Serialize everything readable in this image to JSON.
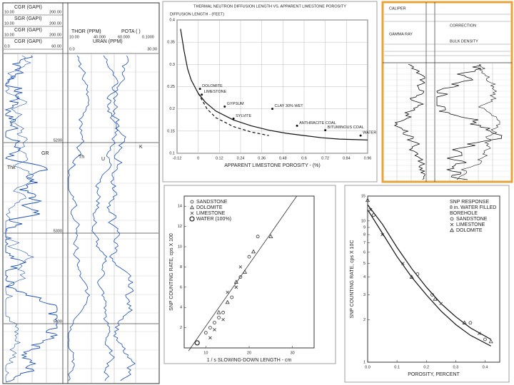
{
  "left_log": {
    "header_left": [
      [
        "CGR (GAPI)",
        "10.00",
        "200.00"
      ],
      [
        "SGR (GAPI)",
        "10.00",
        "200.00"
      ],
      [
        "CGR (GAPI)",
        "10.00",
        "200.00"
      ],
      [
        "CGR (GAPI)",
        "0.0",
        "60.00"
      ]
    ],
    "header_right": {
      "thor": "THOR (PPM)",
      "pota": "POTA (   )",
      "scale": [
        "10.00",
        "40.000",
        "60.000",
        "0.1000"
      ],
      "uran": "URAN (PPM)",
      "uran_scale": [
        "0.0",
        "30.00"
      ]
    },
    "depths": [
      "5200",
      "5300",
      "5400"
    ],
    "curve_labels": [
      "GR",
      "Th",
      "U",
      "K",
      "Thk"
    ]
  },
  "right_log": {
    "headers": [
      "CALIPER",
      "GAMMA RAY",
      "CORRECTION",
      "BULK DENSITY"
    ]
  },
  "chart_data": [
    {
      "type": "line",
      "title": "THERMAL NEUTRON DIFFUSION LENGTH VS. APPARENT LIMESTONE POROSITY",
      "y_label": "DIFFUSION LENGTH - (FEET)",
      "x_label": "APPARENT LIMESTONE POROSITY - (%)",
      "xlim": [
        -0.12,
        0.96
      ],
      "xticks": [
        -0.12,
        0,
        0.12,
        0.24,
        0.36,
        0.48,
        0.6,
        0.72,
        0.84,
        0.96
      ],
      "ylim": [
        0.1,
        0.4
      ],
      "yticks": [
        0.1,
        0.15,
        0.2,
        0.25,
        0.3,
        0.35,
        0.4
      ],
      "grid": true,
      "series": [
        {
          "color": "#111111",
          "dash": false,
          "x": [
            -0.1,
            -0.08,
            -0.06,
            -0.04,
            -0.02,
            0,
            0.04,
            0.1,
            0.2,
            0.3,
            0.4,
            0.5,
            0.6,
            0.7,
            0.8,
            0.96
          ],
          "values": [
            0.38,
            0.33,
            0.29,
            0.265,
            0.25,
            0.235,
            0.215,
            0.195,
            0.175,
            0.162,
            0.152,
            0.145,
            0.14,
            0.135,
            0.132,
            0.13
          ]
        },
        {
          "color": "#111111",
          "dash": true,
          "x": [
            0,
            0.05,
            0.1,
            0.2,
            0.3,
            0.4
          ],
          "values": [
            0.235,
            0.2,
            0.18,
            0.16,
            0.148,
            0.14
          ]
        }
      ],
      "annotations": [
        {
          "text": "DOLOMITE",
          "x": 0.01,
          "y": 0.245
        },
        {
          "text": "LIMESTONE",
          "x": 0.02,
          "y": 0.232
        },
        {
          "text": "GYPSUM",
          "x": 0.15,
          "y": 0.205
        },
        {
          "text": "SYLVITE",
          "x": 0.2,
          "y": 0.178
        },
        {
          "text": "CLAY 30% WET",
          "x": 0.42,
          "y": 0.2
        },
        {
          "text": "ANTHRACITE COAL",
          "x": 0.56,
          "y": 0.162
        },
        {
          "text": "BITUMINOUS COAL",
          "x": 0.72,
          "y": 0.152
        },
        {
          "text": "WATER",
          "x": 0.92,
          "y": 0.14
        }
      ]
    },
    {
      "type": "scatter",
      "y_label": "SNP COUNTING RATE, cps X 100",
      "x_label": "1 / s SLOWING-DOWN LENGTH - cm",
      "xlim": [
        5,
        35
      ],
      "xticks": [
        10,
        20,
        30
      ],
      "ylim": [
        0,
        15
      ],
      "yticks": [
        2,
        4,
        6,
        8,
        10,
        12,
        14
      ],
      "grid": false,
      "legend": "upper left",
      "series": [
        {
          "name": "SANDSTONE",
          "color": "#333333",
          "marker": "circle",
          "x": [
            10,
            11,
            12,
            13,
            14,
            16,
            18,
            20,
            22
          ],
          "values": [
            1.5,
            2,
            2.5,
            3,
            3.5,
            5,
            7,
            9,
            11
          ]
        },
        {
          "name": "DOLOMITE",
          "color": "#333333",
          "marker": "triangle",
          "x": [
            13,
            15,
            17,
            19,
            21,
            25
          ],
          "values": [
            3.5,
            4.5,
            6.5,
            7.5,
            9.5,
            11
          ]
        },
        {
          "name": "LIMESTONE",
          "color": "#333333",
          "marker": "cross",
          "x": [
            11,
            12,
            14,
            15,
            17,
            18
          ],
          "values": [
            1,
            1.8,
            2.8,
            5.5,
            6,
            8
          ]
        },
        {
          "name": "WATER (100%)",
          "color": "#333333",
          "marker": "ring",
          "x": [
            8
          ],
          "values": [
            0.5
          ]
        }
      ],
      "fit_line": {
        "x": [
          6,
          31
        ],
        "values": [
          -0.3,
          15
        ]
      }
    },
    {
      "type": "line",
      "y_label": "SNP COUNTING RATE, cps X 10C",
      "x_label": "POROSITY, PERCENT",
      "xlim": [
        0,
        0.45
      ],
      "xticks": [
        {
          "value": 0,
          "label": "0.0"
        },
        0.1,
        0.2,
        0.3,
        0.4
      ],
      "ylim": [
        1,
        15
      ],
      "log": true,
      "yticks": [
        1,
        2,
        3,
        4,
        5,
        6,
        7,
        8,
        9,
        10,
        15
      ],
      "grid": false,
      "legend": "upper right",
      "legend_title": [
        "SNP RESPONSE",
        "8 in. WATER FILLED",
        "BOREHOLE"
      ],
      "series": [
        {
          "color": "#111111",
          "dash": false,
          "x": [
            0,
            0.05,
            0.1,
            0.15,
            0.2,
            0.25,
            0.3,
            0.35,
            0.42
          ],
          "values": [
            13,
            9.5,
            6.5,
            4.6,
            3.4,
            2.6,
            2.1,
            1.75,
            1.45
          ]
        },
        {
          "color": "#111111",
          "dash": false,
          "x": [
            0,
            0.05,
            0.1,
            0.15,
            0.2,
            0.25,
            0.3,
            0.35,
            0.42
          ],
          "values": [
            12,
            8.2,
            5.6,
            4,
            3,
            2.3,
            1.85,
            1.55,
            1.3
          ]
        },
        {
          "name": "SANDSTONE",
          "color": "#333333",
          "marker": "circle",
          "x": [
            0.02,
            0.17,
            0.22,
            0.35,
            0.4
          ],
          "values": [
            11,
            4.2,
            3,
            1.9,
            1.45
          ]
        },
        {
          "name": "LIMESTONE",
          "color": "#333333",
          "marker": "cross",
          "x": [
            0.01,
            0.05,
            0.12,
            0.25,
            0.38
          ],
          "values": [
            12,
            8,
            5,
            2.6,
            1.6
          ]
        },
        {
          "name": "DOLOMITE",
          "color": "#333333",
          "marker": "triangle",
          "x": [
            0,
            0.15,
            0.23,
            0.33,
            0.42
          ],
          "values": [
            14,
            4,
            2.8,
            1.9,
            1.4
          ]
        }
      ]
    }
  ]
}
